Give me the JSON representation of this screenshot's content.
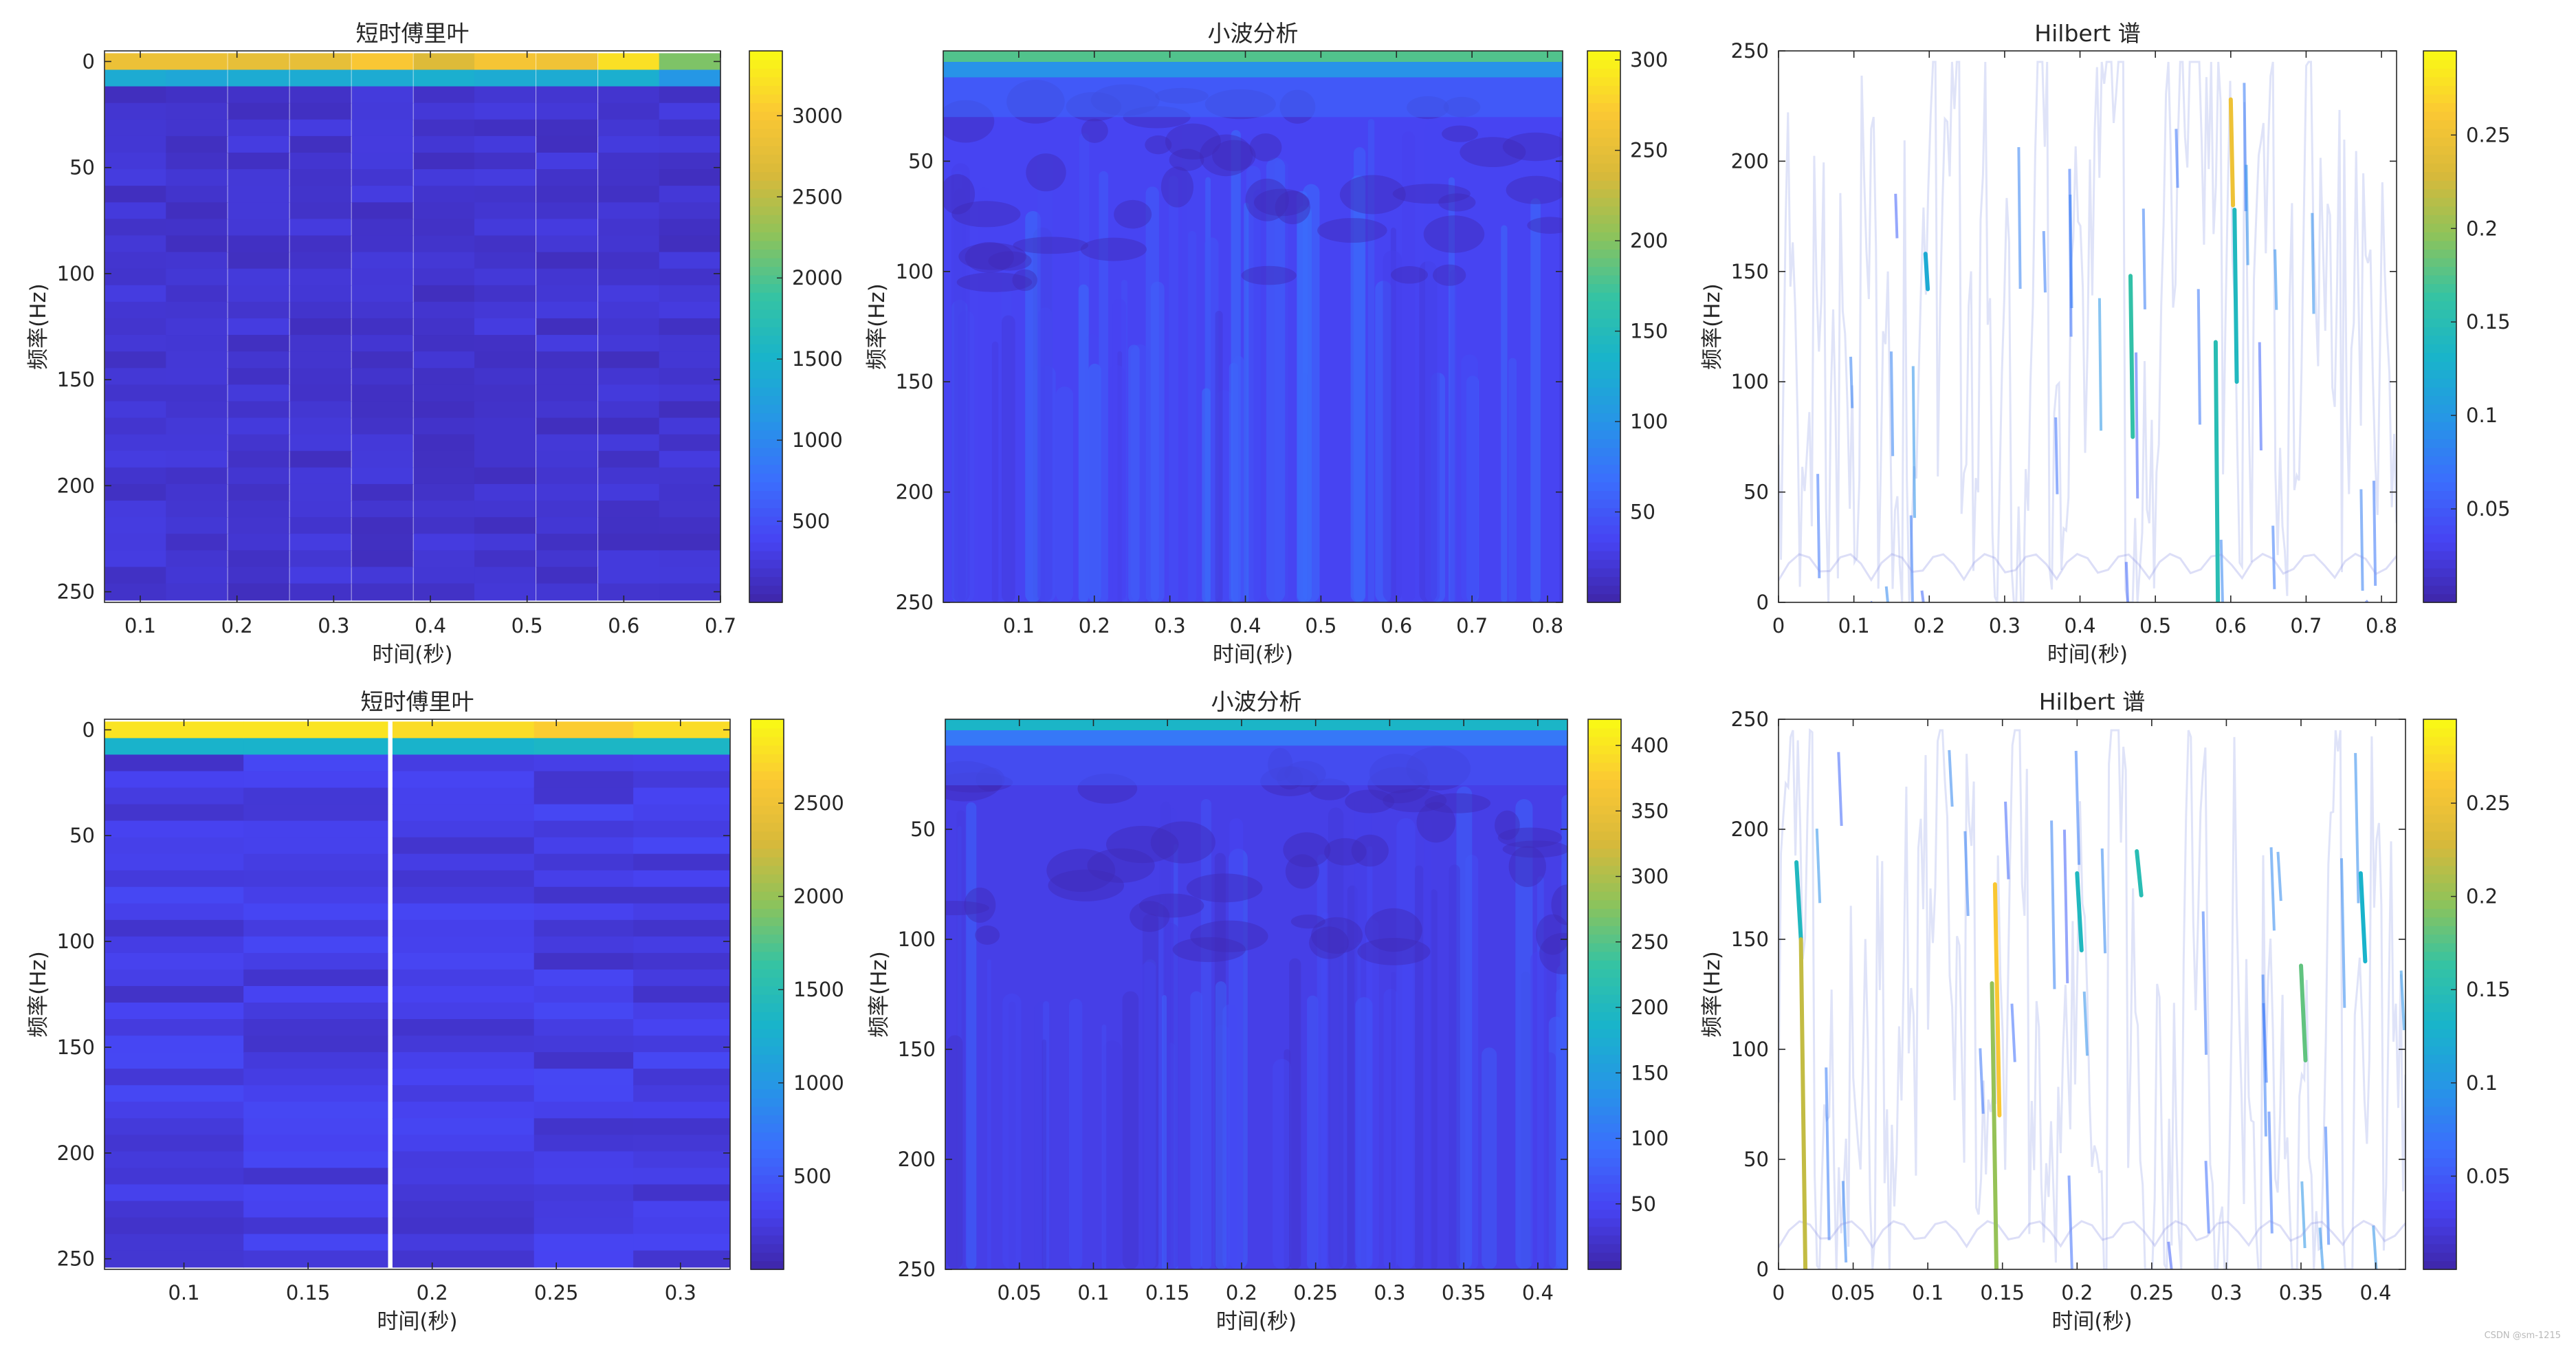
{
  "figure": {
    "watermark": "CSDN @sm-1215"
  },
  "colors": {
    "axis": "#262626",
    "parula": [
      "#3e26a8",
      "#4743f2",
      "#3b6efd",
      "#2696e6",
      "#19b4ca",
      "#35c3a3",
      "#8ec35a",
      "#d9b93a",
      "#fbc834",
      "#f9fb14"
    ]
  },
  "chart_data": [
    {
      "type": "heatmap",
      "id": "stft-1",
      "title": "短时傅里叶",
      "xlabel": "时间(秒)",
      "ylabel": "频率(Hz)",
      "xlim": [
        0.063,
        0.7
      ],
      "ylim": [
        -5,
        255
      ],
      "y_reversed": true,
      "xticks": [
        0.1,
        0.2,
        0.3,
        0.4,
        0.5,
        0.6,
        0.7
      ],
      "yticks": [
        0,
        50,
        100,
        150,
        200,
        250
      ],
      "time_columns": [
        0.095,
        0.158,
        0.222,
        0.286,
        0.35,
        0.414,
        0.477,
        0.541,
        0.605,
        0.668
      ],
      "freq_rows": 33,
      "bin0_values": [
        2850,
        2850,
        2800,
        2800,
        3000,
        2700,
        2950,
        2900,
        3200,
        2200
      ],
      "bin1_values": [
        1400,
        1350,
        1400,
        1400,
        1400,
        1450,
        1400,
        1400,
        1450,
        1150
      ],
      "background_value": 200,
      "clim": [
        0,
        3400
      ],
      "colorbar_ticks": [
        500,
        1000,
        1500,
        2000,
        2500,
        3000
      ]
    },
    {
      "type": "heatmap",
      "id": "cwt-1",
      "title": "小波分析",
      "xlabel": "时间(秒)",
      "ylabel": "频率(Hz)",
      "xlim": [
        0,
        0.82
      ],
      "ylim": [
        0,
        250
      ],
      "y_reversed": true,
      "xticks": [
        0.1,
        0.2,
        0.3,
        0.4,
        0.5,
        0.6,
        0.7,
        0.8
      ],
      "yticks": [
        50,
        100,
        150,
        200,
        250
      ],
      "top_band_value": 180,
      "background_value": 35,
      "clim": [
        0,
        305
      ],
      "colorbar_ticks": [
        50,
        100,
        150,
        200,
        250,
        300
      ]
    },
    {
      "type": "line",
      "id": "hilbert-1",
      "title": "Hilbert 谱",
      "xlabel": "时间(秒)",
      "ylabel": "频率(Hz)",
      "xlim": [
        0,
        0.82
      ],
      "ylim": [
        0,
        250
      ],
      "xticks": [
        0,
        0.1,
        0.2,
        0.3,
        0.4,
        0.5,
        0.6,
        0.7,
        0.8
      ],
      "yticks": [
        0,
        50,
        100,
        150,
        200,
        250
      ],
      "highlights": [
        {
          "t": 0.195,
          "f1": 158,
          "f2": 142,
          "v": 0.12
        },
        {
          "t": 0.467,
          "f1": 148,
          "f2": 75,
          "v": 0.16
        },
        {
          "t": 0.58,
          "f1": 118,
          "f2": 0,
          "v": 0.15
        },
        {
          "t": 0.6,
          "f1": 228,
          "f2": 180,
          "v": 0.25
        },
        {
          "t": 0.605,
          "f1": 178,
          "f2": 100,
          "v": 0.14
        }
      ],
      "clim": [
        0,
        0.295
      ],
      "colorbar_ticks": [
        0.05,
        0.1,
        0.15,
        0.2,
        0.25
      ]
    },
    {
      "type": "heatmap",
      "id": "stft-2",
      "title": "短时傅里叶",
      "xlabel": "时间(秒)",
      "ylabel": "频率(Hz)",
      "xlim": [
        0.068,
        0.32
      ],
      "ylim": [
        -5,
        255
      ],
      "y_reversed": true,
      "xticks": [
        0.1,
        0.15,
        0.2,
        0.25,
        0.3
      ],
      "yticks": [
        0,
        50,
        100,
        150,
        200,
        250
      ],
      "time_columns": [
        0.095,
        0.153,
        0.213,
        0.27,
        0.31
      ],
      "freq_rows": 33,
      "bin0_values": [
        2800,
        2800,
        2750,
        2650,
        2750
      ],
      "bin1_values": [
        1300,
        1300,
        1300,
        1350,
        1350
      ],
      "background_value": 250,
      "clim": [
        0,
        2950
      ],
      "colorbar_ticks": [
        500,
        1000,
        1500,
        2000,
        2500
      ]
    },
    {
      "type": "heatmap",
      "id": "cwt-2",
      "title": "小波分析",
      "xlabel": "时间(秒)",
      "ylabel": "频率(Hz)",
      "xlim": [
        0,
        0.42
      ],
      "ylim": [
        0,
        250
      ],
      "y_reversed": true,
      "xticks": [
        0.05,
        0.1,
        0.15,
        0.2,
        0.25,
        0.3,
        0.35,
        0.4
      ],
      "yticks": [
        50,
        100,
        150,
        200,
        250
      ],
      "top_band_value": 190,
      "background_value": 40,
      "clim": [
        0,
        420
      ],
      "colorbar_ticks": [
        50,
        100,
        150,
        200,
        250,
        300,
        350,
        400
      ]
    },
    {
      "type": "line",
      "id": "hilbert-2",
      "title": "Hilbert 谱",
      "xlabel": "时间(秒)",
      "ylabel": "频率(Hz)",
      "xlim": [
        0,
        0.42
      ],
      "ylim": [
        0,
        250
      ],
      "xticks": [
        0,
        0.05,
        0.1,
        0.15,
        0.2,
        0.25,
        0.3,
        0.35,
        0.4
      ],
      "yticks": [
        0,
        50,
        100,
        150,
        200,
        250
      ],
      "highlights": [
        {
          "t": 0.012,
          "f1": 185,
          "f2": 150,
          "v": 0.14
        },
        {
          "t": 0.015,
          "f1": 150,
          "f2": 0,
          "v": 0.22
        },
        {
          "t": 0.145,
          "f1": 175,
          "f2": 70,
          "v": 0.26
        },
        {
          "t": 0.143,
          "f1": 130,
          "f2": 0,
          "v": 0.2
        },
        {
          "t": 0.2,
          "f1": 180,
          "f2": 145,
          "v": 0.14
        },
        {
          "t": 0.24,
          "f1": 190,
          "f2": 170,
          "v": 0.15
        },
        {
          "t": 0.35,
          "f1": 138,
          "f2": 95,
          "v": 0.18
        },
        {
          "t": 0.39,
          "f1": 180,
          "f2": 140,
          "v": 0.13
        }
      ],
      "clim": [
        0,
        0.295
      ],
      "colorbar_ticks": [
        0.05,
        0.1,
        0.15,
        0.2,
        0.25
      ]
    }
  ]
}
